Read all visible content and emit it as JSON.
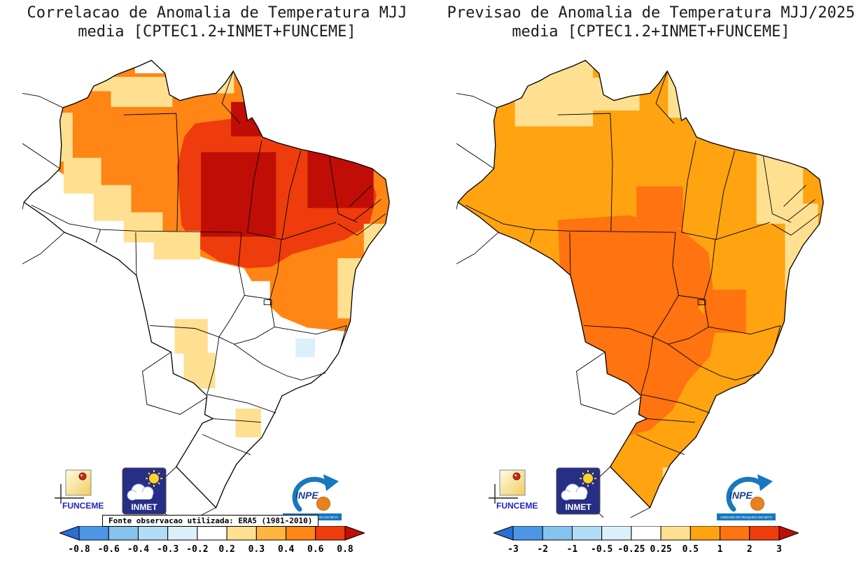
{
  "figure": {
    "left": {
      "title_line1": "Correlacao de Anomalia de Temperatura MJJ",
      "title_line2": "media [CPTEC1.2+INMET+FUNCEME]",
      "source_note": "Fonte observacao utilizada: ERA5 (1981-2010)"
    },
    "right": {
      "title_line1": "Previsao de Anomalia de Temperatura MJJ/2025",
      "title_line2": "media [CPTEC1.2+INMET+FUNCEME]"
    }
  },
  "logos": {
    "funceme_label": "FUNCEME",
    "inmet_label": "INMET",
    "inpe_label": "INPE",
    "inpe_subtext": "UNIDADE DE PESQUISA DO MCTI"
  },
  "palette": {
    "blue_arrow": "#2a6fd2",
    "blue_mid": "#4b97e6",
    "blue_light": "#86c4ef",
    "blue_pale": "#b3ddf6",
    "blue_faint": "#dbf0fb",
    "white": "#ffffff",
    "yellow": "#ffe091",
    "light_orange": "#ffb53e",
    "orange": "#ffa310",
    "deep_orange": "#ff8514",
    "dark_orange": "#ff7310",
    "red": "#ee3c0c",
    "dark_red": "#c00d05"
  },
  "colorbars": {
    "left": {
      "ticks": [
        "-0.8",
        "-0.6",
        "-0.4",
        "-0.3",
        "-0.2",
        "0.2",
        "0.3",
        "0.4",
        "0.6",
        "0.8"
      ],
      "colors": [
        "blue_arrow",
        "blue_mid",
        "blue_light",
        "blue_pale",
        "blue_faint",
        "white",
        "yellow",
        "light_orange",
        "deep_orange",
        "red",
        "dark_red"
      ]
    },
    "right": {
      "ticks": [
        "-3",
        "-2",
        "-1",
        "-0.5",
        "-0.25",
        "0.25",
        "0.5",
        "1",
        "2",
        "3"
      ],
      "colors": [
        "blue_arrow",
        "blue_mid",
        "blue_light",
        "blue_pale",
        "blue_faint",
        "white",
        "yellow",
        "orange",
        "dark_orange",
        "red",
        "dark_red"
      ]
    }
  },
  "chart_data": [
    {
      "type": "heatmap",
      "title": "Correlacao de Anomalia de Temperatura MJJ media [CPTEC1.2+INMET+FUNCEME]",
      "region": "Brazil",
      "variable": "correlation of MJJ temperature anomaly",
      "colorbar_levels": [
        -0.8,
        -0.6,
        -0.4,
        -0.3,
        -0.2,
        0.2,
        0.3,
        0.4,
        0.6,
        0.8
      ],
      "colorbar_style": "horizontal, arrow ends on both sides",
      "source_note": "Fonte observacao utilizada: ERA5 (1981-2010)",
      "values_by_region": {
        "northwest_amazonia": 0.5,
        "eastern_para_maranhao_piaui": 0.85,
        "lower_amazon_and_west_ceara_cores": 0.9,
        "northeast_coast_and_bahia": 0.5,
        "bahia_coast_fringe": 0.25,
        "mato_grosso_center_west": 0.0,
        "southeast_and_south": 0.0,
        "scattered_ms_and_south_cells": 0.25,
        "single_sao_paulo_cell": -0.25
      }
    },
    {
      "type": "heatmap",
      "title": "Previsao de Anomalia de Temperatura MJJ/2025 media [CPTEC1.2+INMET+FUNCEME]",
      "region": "Brazil",
      "variable": "forecast MJJ/2025 temperature anomaly (degC)",
      "colorbar_levels": [
        -3,
        -2,
        -1,
        -0.5,
        -0.25,
        0.25,
        0.5,
        1,
        2,
        3
      ],
      "colorbar_style": "horizontal, arrow ends on both sides",
      "values_by_region": {
        "most_of_brazil": 0.75,
        "center_west_mt_ms_go": 1.5,
        "roraima": 0.4,
        "amapa": 0.4,
        "northeast_coast_strip": 0.4,
        "east_bahia_coast": 0.4,
        "rio_grande_do_sul_coast_cell": 0.4
      }
    }
  ]
}
